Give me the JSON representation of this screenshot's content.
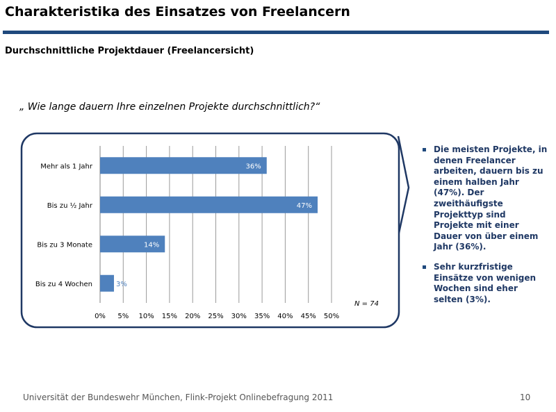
{
  "header": {
    "title": "Charakteristika des Einsatzes von Freelancern",
    "subtitle": "Durchschnittliche Projektdauer (Freelancersicht)",
    "question": "„ Wie lange dauern Ihre einzelnen Projekte durchschnittlich?“"
  },
  "chart_data": {
    "type": "bar",
    "orientation": "horizontal",
    "categories": [
      "Mehr als 1 Jahr",
      "Bis zu ½ Jahr",
      "Bis zu 3 Monate",
      "Bis zu 4 Wochen"
    ],
    "values": [
      36,
      47,
      14,
      3
    ],
    "data_labels": [
      "36%",
      "47%",
      "14%",
      "3%"
    ],
    "x_ticks": [
      "0%",
      "5%",
      "10%",
      "15%",
      "20%",
      "25%",
      "30%",
      "35%",
      "40%",
      "45%",
      "50%"
    ],
    "xlim": [
      0,
      50
    ],
    "grid": true,
    "bar_color": "#4f81bd",
    "note": "N = 74"
  },
  "bullets": [
    "Die meisten Projekte, in denen Freelancer arbeiten, dauern bis zu einem halben Jahr (47%). Der zweithäufigste Projekttyp sind Projekte mit einer Dauer von über einem Jahr (36%).",
    "Sehr kurzfristige Einsätze von wenigen Wochen sind eher selten (3%)."
  ],
  "footer": {
    "text": "Universität der Bundeswehr München, Flink-Projekt Onlinebefragung  2011",
    "page": "10"
  },
  "colors": {
    "accent": "#1f497d",
    "bar": "#4f81bd",
    "bullet_text": "#1f3864"
  }
}
